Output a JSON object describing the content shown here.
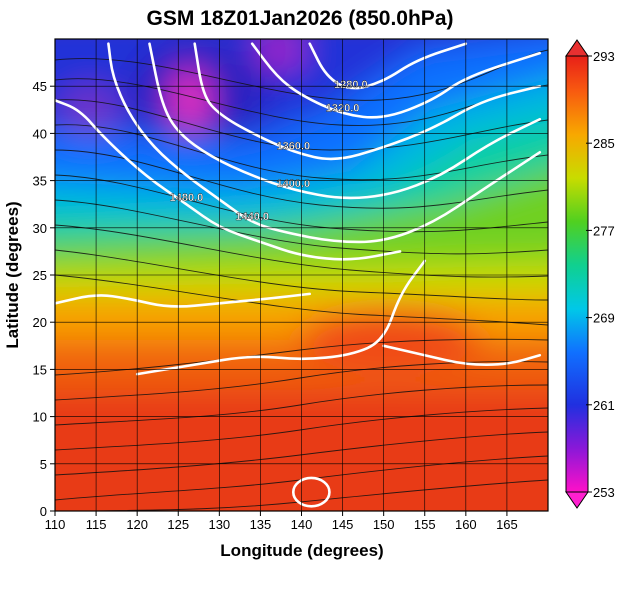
{
  "chart_data": {
    "type": "heatmap",
    "title": "GSM 18Z01Jan2026 (850.0hPa)",
    "xlabel": "Longitude (degrees)",
    "ylabel": "Latitude  (degrees)",
    "xlim": [
      110,
      170
    ],
    "ylim": [
      0,
      50
    ],
    "x_ticks": [
      110,
      115,
      120,
      125,
      130,
      135,
      140,
      145,
      150,
      155,
      160,
      165
    ],
    "y_ticks": [
      0,
      5,
      10,
      15,
      20,
      25,
      30,
      35,
      40,
      45
    ],
    "grid": true,
    "colorbar": {
      "range": [
        253,
        293
      ],
      "tick_values": [
        253,
        261,
        269,
        277,
        285,
        293
      ]
    },
    "contours": [
      {
        "label": "1280.0",
        "points": [
          [
            160,
            49.5
          ],
          [
            154,
            47.8
          ],
          [
            150,
            45.5
          ],
          [
            146,
            44.5
          ],
          [
            143,
            46
          ],
          [
            141,
            49.5
          ]
        ]
      },
      {
        "label": "1320.0",
        "points": [
          [
            169,
            48.5
          ],
          [
            160,
            46
          ],
          [
            156,
            43.5
          ],
          [
            150,
            41.5
          ],
          [
            145,
            42
          ],
          [
            140,
            44
          ],
          [
            137,
            46
          ],
          [
            134,
            49.5
          ]
        ]
      },
      {
        "label": "1360.0",
        "points": [
          [
            169,
            45
          ],
          [
            162,
            43.5
          ],
          [
            156,
            40.5
          ],
          [
            150,
            38.5
          ],
          [
            144,
            37
          ],
          [
            139,
            38
          ],
          [
            134,
            40
          ],
          [
            130,
            42
          ],
          [
            128,
            44
          ],
          [
            127,
            49.5
          ]
        ]
      },
      {
        "label": "1400.0",
        "points": [
          [
            169,
            41.5
          ],
          [
            163,
            39
          ],
          [
            157,
            35.5
          ],
          [
            151,
            33.5
          ],
          [
            145,
            33
          ],
          [
            139,
            34
          ],
          [
            134,
            35.5
          ],
          [
            129,
            37.5
          ],
          [
            125,
            40
          ],
          [
            123,
            43
          ],
          [
            121.5,
            49.5
          ]
        ]
      },
      {
        "label": "1440.0",
        "points": [
          [
            169,
            38
          ],
          [
            162,
            34
          ],
          [
            156,
            30.5
          ],
          [
            150,
            28.5
          ],
          [
            144,
            28.5
          ],
          [
            138,
            29.5
          ],
          [
            134,
            30.5
          ],
          [
            130,
            33
          ],
          [
            126,
            35.5
          ],
          [
            122,
            38.5
          ],
          [
            119,
            42
          ],
          [
            117,
            46
          ],
          [
            116.5,
            49.5
          ]
        ]
      },
      {
        "label": "1480.0",
        "points": [
          [
            152,
            27.5
          ],
          [
            146,
            26.5
          ],
          [
            140,
            27
          ],
          [
            135,
            28.5
          ],
          [
            130,
            30
          ],
          [
            126,
            32.5
          ],
          [
            121,
            35.5
          ],
          [
            116,
            39.5
          ],
          [
            113,
            42.5
          ],
          [
            110,
            43.5
          ]
        ]
      },
      {
        "label": "",
        "points": [
          [
            141,
            23
          ],
          [
            136,
            22.5
          ],
          [
            130,
            22
          ],
          [
            124,
            21.5
          ],
          [
            119,
            22.5
          ],
          [
            115,
            23
          ],
          [
            110,
            22
          ]
        ]
      },
      {
        "label": "",
        "points": [
          [
            155,
            26.5
          ],
          [
            152,
            23
          ],
          [
            150,
            18
          ],
          [
            146,
            16.5
          ],
          [
            140,
            16
          ],
          [
            134,
            16.5
          ],
          [
            127,
            15.5
          ],
          [
            120,
            14.5
          ]
        ]
      },
      {
        "label": "",
        "points": [
          [
            169,
            16.5
          ],
          [
            165,
            15.5
          ],
          [
            160,
            15.5
          ],
          [
            155,
            16.5
          ],
          [
            150,
            17.5
          ]
        ]
      }
    ],
    "closed_contours": [
      {
        "label": "",
        "center": [
          141.2,
          2
        ],
        "r": [
          2.2,
          1.5
        ]
      }
    ]
  }
}
